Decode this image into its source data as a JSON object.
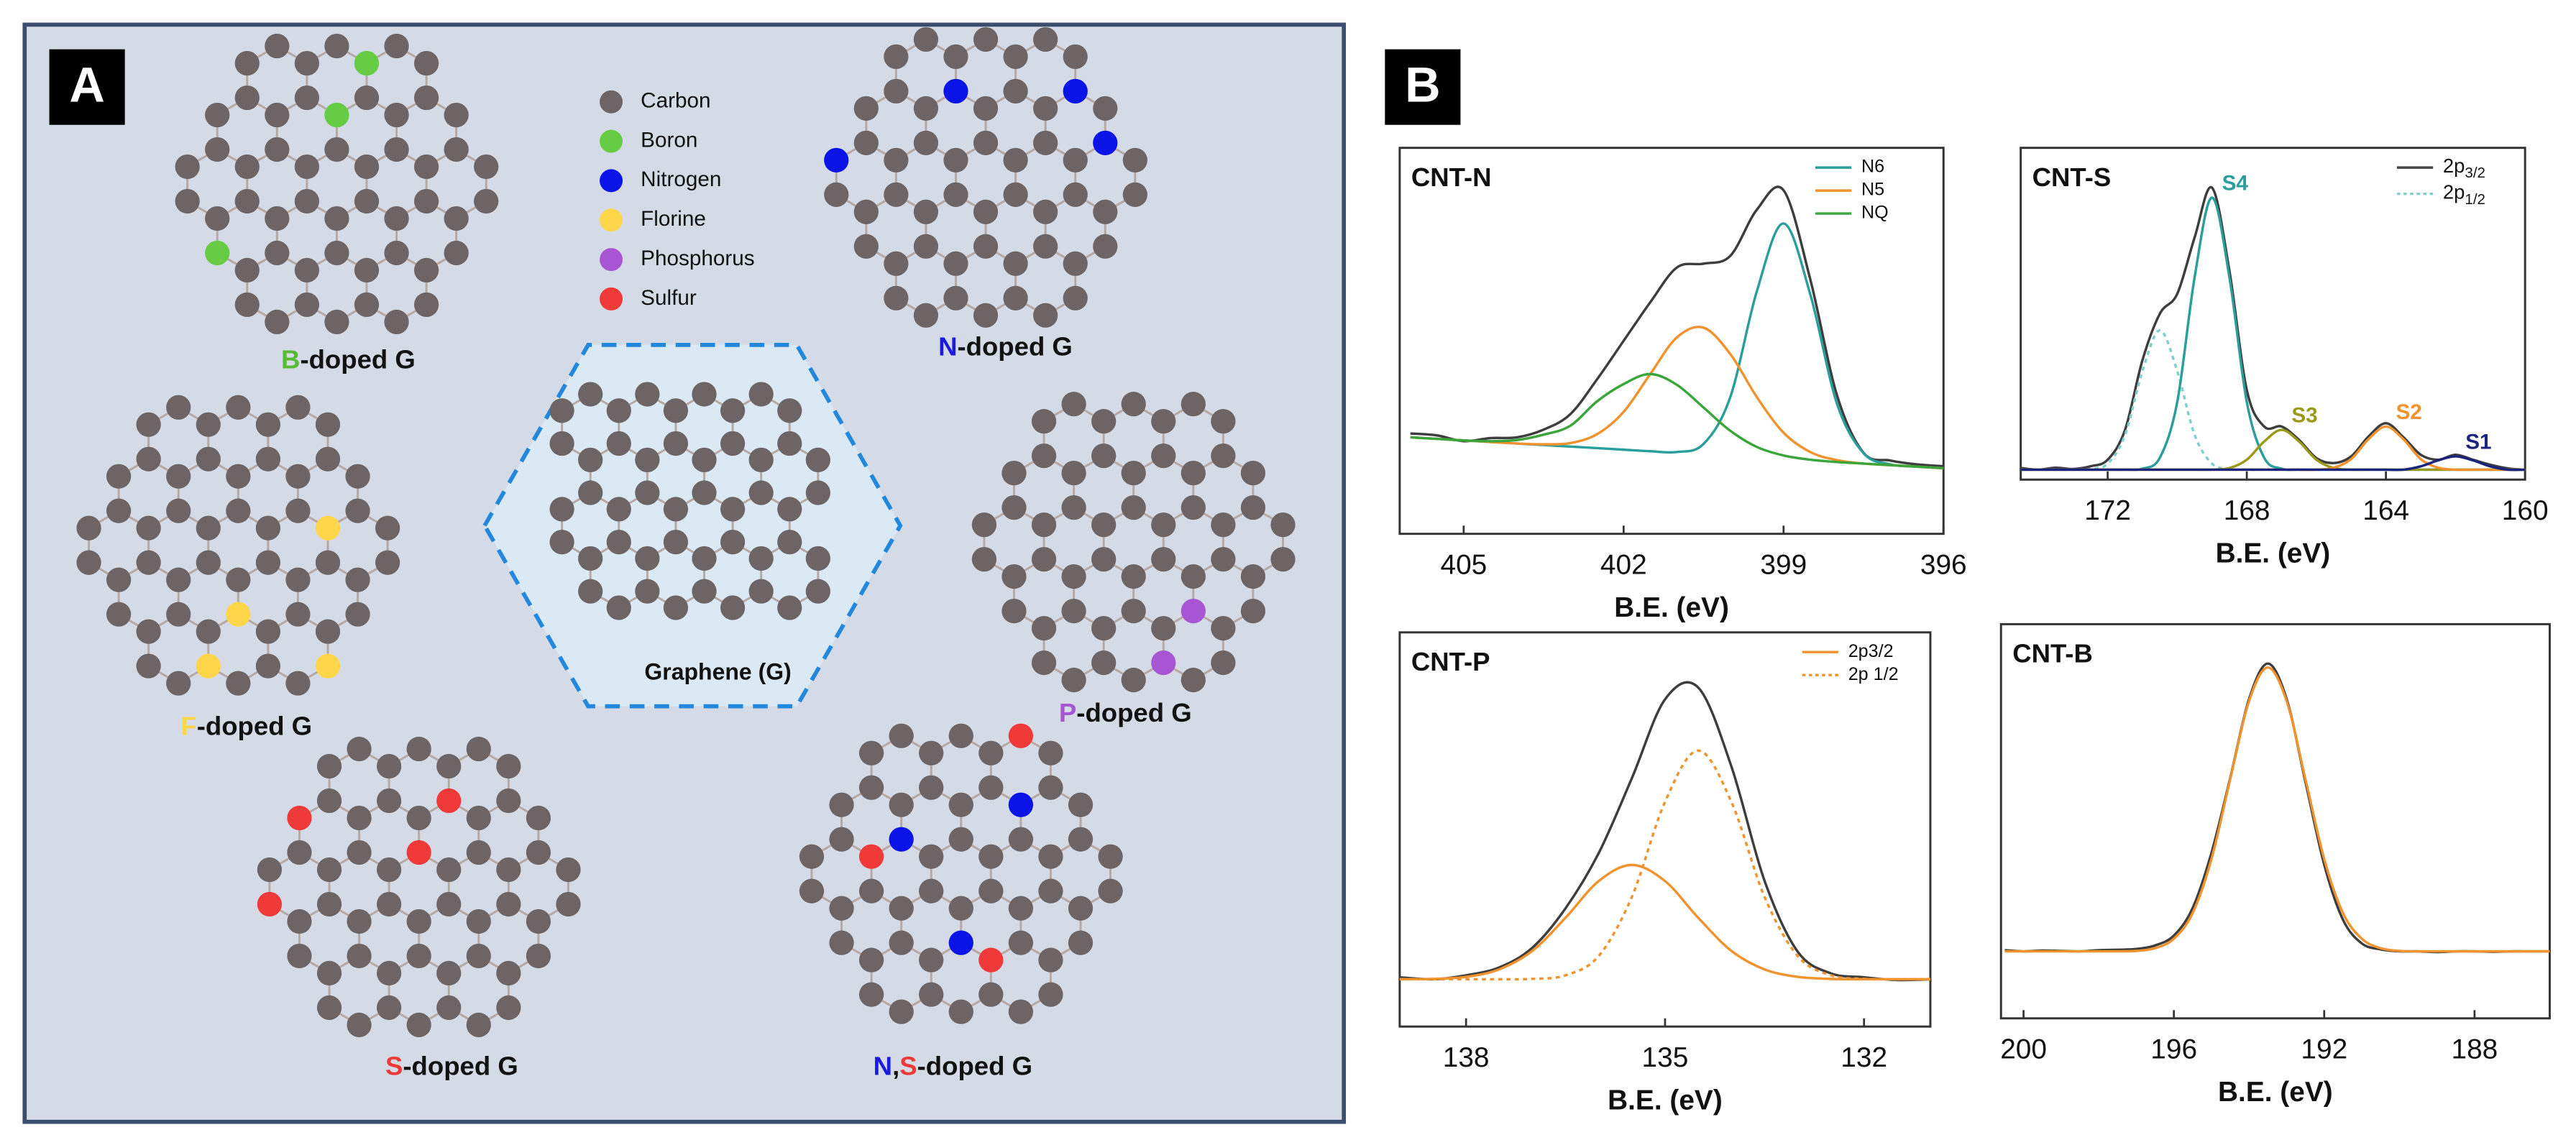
{
  "panel_a": {
    "label": "A",
    "legend": [
      {
        "name": "Carbon",
        "color": "#6d6565"
      },
      {
        "name": "Boron",
        "color": "#66cc44"
      },
      {
        "name": "Nitrogen",
        "color": "#0a14e6"
      },
      {
        "name": "Florine",
        "color": "#ffd54a"
      },
      {
        "name": "Phosphorus",
        "color": "#a855d4"
      },
      {
        "name": "Sulfur",
        "color": "#f03a3a"
      }
    ],
    "graphene_label": "Graphene (G)",
    "flakes": [
      {
        "parts": [
          {
            "text": "B",
            "color": "#55bb33"
          },
          {
            "text": "-doped G"
          }
        ],
        "dopant_colors": [
          "#66cc44"
        ]
      },
      {
        "parts": [
          {
            "text": "N",
            "color": "#1a1ae0"
          },
          {
            "text": "-doped G"
          }
        ],
        "dopant_colors": [
          "#0a14e6"
        ]
      },
      {
        "parts": [
          {
            "text": "F",
            "color": "#ffd54a"
          },
          {
            "text": "-doped G"
          }
        ],
        "dopant_colors": [
          "#ffd54a"
        ]
      },
      {
        "parts": [
          {
            "text": "P",
            "color": "#a855d4"
          },
          {
            "text": "-doped G"
          }
        ],
        "dopant_colors": [
          "#a855d4"
        ]
      },
      {
        "parts": [
          {
            "text": "S",
            "color": "#f03a3a"
          },
          {
            "text": "-doped G"
          }
        ],
        "dopant_colors": [
          "#f03a3a"
        ]
      },
      {
        "parts": [
          {
            "text": "N",
            "color": "#1a1ae0"
          },
          {
            "text": ","
          },
          {
            "text": "S",
            "color": "#f03a3a"
          },
          {
            "text": "-doped G"
          }
        ],
        "dopant_colors": [
          "#0a14e6",
          "#f03a3a"
        ]
      }
    ]
  },
  "panel_b_label": "B",
  "chart_data": [
    {
      "type": "line",
      "title": "CNT-N",
      "xlabel": "B.E. (eV)",
      "x": [
        406,
        405.5,
        405,
        404.5,
        404,
        403.5,
        403,
        402.5,
        402,
        401.5,
        401,
        400.5,
        400,
        399.5,
        399,
        398.5,
        398,
        397.5,
        397,
        396.5,
        396
      ],
      "xlim": [
        406.2,
        396
      ],
      "xticks": [
        405,
        402,
        399,
        396
      ],
      "ylim": [
        0,
        100
      ],
      "legend_position": "upper right",
      "series": [
        {
          "color": "#3d3d3d",
          "values": [
            26,
            25.5,
            24,
            24.8,
            25,
            27,
            31,
            40,
            50,
            60,
            69,
            70,
            72,
            84,
            89,
            66,
            36,
            21,
            19,
            18,
            17.5
          ]
        },
        {
          "name": "N6",
          "color": "#2a9d9d",
          "values": [
            25,
            24.6,
            24.2,
            23.8,
            23.4,
            23,
            22.6,
            22.2,
            21.8,
            21.4,
            21.2,
            23.3,
            35.4,
            62.9,
            80.4,
            62.1,
            33.8,
            20.9,
            18,
            17.4,
            17
          ]
        },
        {
          "name": "N5",
          "color": "#f0922e",
          "values": [
            25,
            24.6,
            24.2,
            23.8,
            23.4,
            23.2,
            23.5,
            25.8,
            31.6,
            41.4,
            50.9,
            53.4,
            46.6,
            35.4,
            26.2,
            21.2,
            19.1,
            18.2,
            17.8,
            17.4,
            17
          ]
        },
        {
          "name": "NQ",
          "color": "#3aa53a",
          "values": [
            25,
            24.6,
            24.2,
            24,
            24.3,
            25.7,
            28,
            34.3,
            38.8,
            41.4,
            38.6,
            32.7,
            26.7,
            22.5,
            20.3,
            19.2,
            18.6,
            18.2,
            17.8,
            17.4,
            17
          ]
        }
      ]
    },
    {
      "type": "line",
      "title": "CNT-S",
      "xlabel": "B.E. (eV)",
      "x": [
        174.5,
        174,
        173.5,
        173,
        172.5,
        172,
        171.5,
        171,
        170.5,
        170,
        169.5,
        169,
        168.5,
        168,
        167.5,
        167,
        166.5,
        166,
        165.5,
        165,
        164.5,
        164,
        163.5,
        163,
        162.5,
        162,
        161.5,
        161,
        160.5,
        160
      ],
      "xlim": [
        174.5,
        160
      ],
      "xticks": [
        172,
        168,
        164,
        160
      ],
      "ylim": [
        0,
        100
      ],
      "legend_position": "upper right",
      "peak_labels": true,
      "legend_entries": [
        {
          "text": "2p",
          "sub": "3/2",
          "color": "#444444"
        },
        {
          "text": "2p",
          "sub": "1/2",
          "color": "#7fcfcf",
          "dash": true
        }
      ],
      "series": [
        {
          "color": "#3d3d3d",
          "values": [
            3.5,
            3,
            3.6,
            3.2,
            4,
            6,
            15,
            36,
            50,
            56,
            73,
            88,
            63,
            27,
            16,
            16,
            12,
            6.5,
            5,
            7,
            13,
            17,
            12.8,
            7.5,
            6,
            7.5,
            6,
            4.5,
            3.4,
            3
          ]
        },
        {
          "color": "#7fcfcf",
          "dash": true,
          "values": [
            3,
            3,
            3,
            3,
            3.2,
            4.8,
            13.5,
            32.7,
            45,
            32.7,
            13.5,
            4.8,
            3.2,
            3,
            3,
            3,
            3,
            3,
            3,
            3,
            3,
            3,
            3,
            3,
            3,
            3,
            3,
            3,
            3,
            3
          ]
        },
        {
          "name": "S4",
          "color": "#2a9d9d",
          "values": [
            3,
            3,
            3,
            3,
            3,
            3,
            3,
            3.3,
            6.6,
            23.4,
            61,
            85,
            61,
            23.4,
            6.6,
            3.3,
            3,
            3,
            3,
            3,
            3,
            3,
            3,
            3,
            3,
            3,
            3,
            3,
            3,
            3
          ]
        },
        {
          "name": "S3",
          "color": "#9a9a1a",
          "values": [
            3,
            3,
            3,
            3,
            3,
            3,
            3,
            3,
            3,
            3,
            3,
            3,
            3.5,
            6,
            11.5,
            15,
            11.5,
            6,
            3.5,
            3,
            3,
            3,
            3,
            3,
            3,
            3,
            3,
            3,
            3,
            3
          ]
        },
        {
          "name": "S2",
          "color": "#f0922e",
          "values": [
            3,
            3,
            3,
            3,
            3,
            3,
            3,
            3,
            3,
            3,
            3,
            3,
            3,
            3,
            3,
            3,
            3,
            3,
            3.6,
            6.2,
            12.2,
            16,
            12.2,
            6.2,
            3.6,
            3,
            3,
            3,
            3,
            3
          ]
        },
        {
          "name": "S1",
          "color": "#1a237e",
          "values": [
            3,
            3,
            3,
            3,
            3,
            3,
            3,
            3,
            3,
            3,
            3,
            3,
            3,
            3,
            3,
            3,
            3,
            3,
            3,
            3,
            3,
            3,
            3,
            4,
            5.8,
            7,
            5.8,
            4,
            3,
            3
          ]
        }
      ]
    },
    {
      "type": "line",
      "title": "CNT-P",
      "xlabel": "B.E. (eV)",
      "x": [
        139,
        138.5,
        138,
        137.5,
        137,
        136.5,
        136,
        135.5,
        135,
        134.5,
        134,
        133.5,
        133,
        132.5,
        132,
        131.5,
        131
      ],
      "xlim": [
        139,
        131
      ],
      "xticks": [
        138,
        135,
        132
      ],
      "ylim": [
        0,
        100
      ],
      "legend_position": "upper right",
      "series": [
        {
          "color": "#3d3d3d",
          "values": [
            12.5,
            12,
            13,
            15,
            20,
            30,
            44,
            63,
            83,
            86,
            66,
            37,
            19,
            13.5,
            12.5,
            11.8,
            12
          ]
        },
        {
          "name": "2p3/2",
          "color": "#f0922e",
          "values": [
            12,
            12.1,
            12.6,
            14.5,
            19.2,
            27.6,
            36.9,
            41,
            36.9,
            27.6,
            19.2,
            14.5,
            12.6,
            12.1,
            12,
            12,
            12
          ]
        },
        {
          "name": "2p 1/2",
          "color": "#f0922e",
          "dash": true,
          "values": [
            12,
            12,
            12,
            12,
            12.1,
            13,
            17.9,
            32.9,
            57,
            70,
            57,
            32.9,
            17.9,
            13,
            12.1,
            12,
            12
          ]
        }
      ]
    },
    {
      "type": "line",
      "title": "CNT-B",
      "xlabel": "B.E. (eV)",
      "x": [
        200.5,
        200,
        199.5,
        199,
        198.5,
        198,
        197.5,
        197,
        196.5,
        196,
        195.5,
        195,
        194.5,
        194,
        193.5,
        193,
        192.5,
        192,
        191.5,
        191,
        190.5,
        190,
        189.5,
        189,
        188.5,
        188,
        187.5,
        187,
        186.5,
        186
      ],
      "xlim": [
        200.6,
        186
      ],
      "xticks": [
        200,
        196,
        192,
        188
      ],
      "ylim": [
        0,
        100
      ],
      "series": [
        {
          "color": "#3d3d3d",
          "values": [
            17.3,
            17,
            17.2,
            17.1,
            17,
            17.3,
            17.4,
            17.6,
            18.5,
            21,
            28,
            42,
            61,
            81,
            90,
            81,
            60,
            39,
            25,
            19,
            17.5,
            17,
            17,
            16.8,
            17,
            17,
            16.9,
            17,
            17,
            17
          ]
        },
        {
          "color": "#f0922e",
          "values": [
            17,
            17,
            17,
            17,
            17,
            17,
            17,
            17.1,
            17.8,
            20.2,
            26.7,
            40.4,
            60.7,
            80.5,
            89,
            80.5,
            60.7,
            40.4,
            26.7,
            20.2,
            17.8,
            17.1,
            17,
            17,
            17,
            17,
            17,
            17,
            17,
            17
          ]
        }
      ]
    }
  ]
}
